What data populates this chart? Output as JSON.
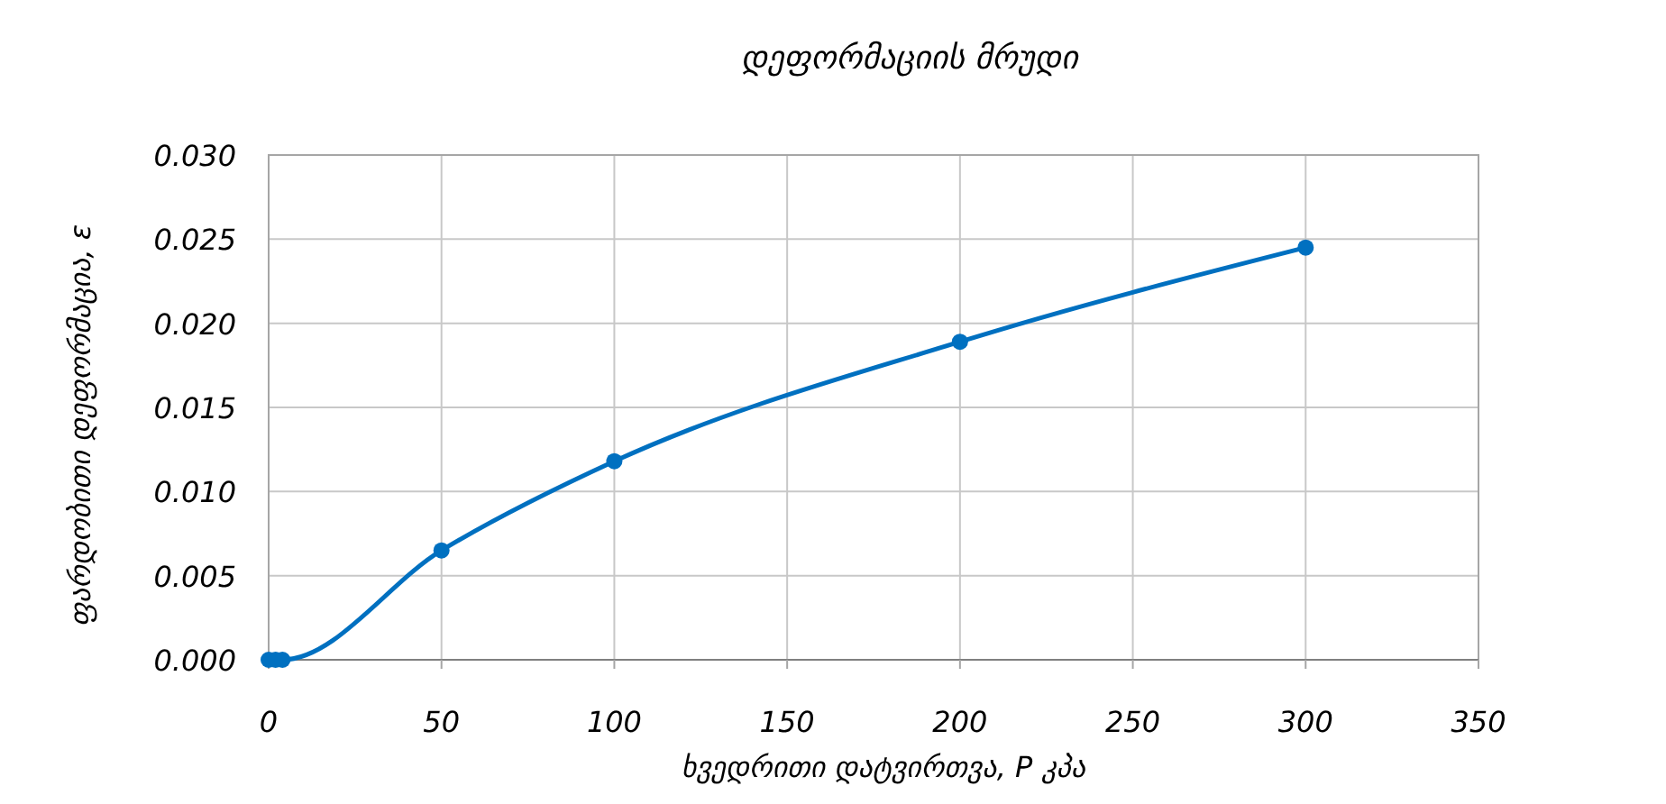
{
  "chart_data": {
    "type": "line",
    "title": "დეფორმაციის მრუდი",
    "xlabel": "ხვედრითი დატვირთვა, P  კპა",
    "ylabel": "ფარდობითი დეფორმაცია, ε",
    "x": [
      0,
      2,
      4,
      50,
      100,
      200,
      300
    ],
    "series": [
      {
        "color": "#0070c0",
        "values": [
          0,
          0,
          0,
          0.0065,
          0.0118,
          0.0189,
          0.0245
        ]
      }
    ],
    "xlim": [
      0,
      350
    ],
    "xticks": [
      0,
      50,
      100,
      150,
      200,
      250,
      300,
      350
    ],
    "ylim": [
      0,
      0.03
    ],
    "yticks": [
      {
        "value": 0,
        "label": "0.000"
      },
      {
        "value": 0.005,
        "label": "0.005"
      },
      {
        "value": 0.01,
        "label": "0.010"
      },
      {
        "value": 0.015,
        "label": "0.015"
      },
      {
        "value": 0.02,
        "label": "0.020"
      },
      {
        "value": 0.025,
        "label": "0.025"
      },
      {
        "value": 0.03,
        "label": "0.030"
      }
    ],
    "grid": true,
    "marker": "circle",
    "line_style": "solid"
  }
}
